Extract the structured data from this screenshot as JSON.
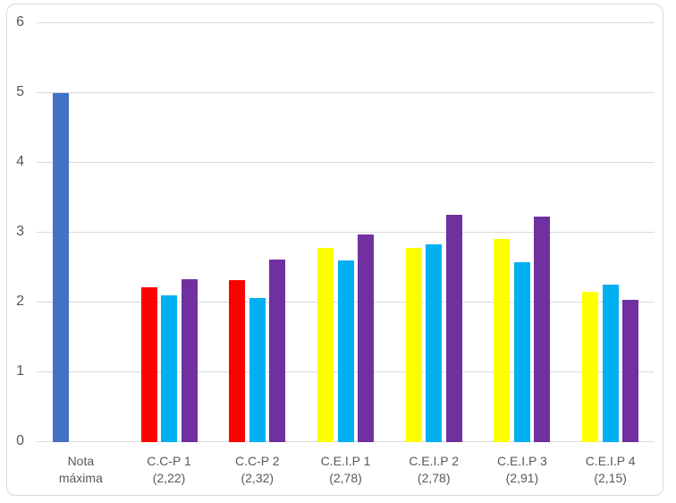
{
  "chart_data": {
    "type": "bar",
    "title": "",
    "xlabel": "",
    "ylabel": "",
    "ylim": [
      0,
      6
    ],
    "ytick_labels": [
      "0",
      "1",
      "2",
      "3",
      "4",
      "5",
      "6"
    ],
    "grid": "horizontal",
    "legend_position": "none",
    "gridline_color": "#d9d9d9",
    "axis_label_color": "#595959",
    "frame_border_color": "#d9d9d9",
    "colors": {
      "blue": "#4472c4",
      "red": "#ff0000",
      "cyan": "#00b0f0",
      "purple": "#7030a0",
      "yellow": "#ffff00"
    },
    "categories": [
      {
        "label_line1": "Nota",
        "label_line2": "máxima",
        "bars": [
          {
            "slot": 0,
            "color": "blue",
            "value": 5.0
          }
        ]
      },
      {
        "label_line1": "C.C-P 1",
        "label_line2": "(2,22)",
        "bars": [
          {
            "slot": 0,
            "color": "red",
            "value": 2.22
          },
          {
            "slot": 1,
            "color": "cyan",
            "value": 2.1
          },
          {
            "slot": 2,
            "color": "purple",
            "value": 2.33
          }
        ]
      },
      {
        "label_line1": "C.C-P 2",
        "label_line2": "(2,32)",
        "bars": [
          {
            "slot": 0,
            "color": "red",
            "value": 2.32
          },
          {
            "slot": 1,
            "color": "cyan",
            "value": 2.07
          },
          {
            "slot": 2,
            "color": "purple",
            "value": 2.61
          }
        ]
      },
      {
        "label_line1": "C.E.I.P 1",
        "label_line2": "(2,78)",
        "bars": [
          {
            "slot": 0,
            "color": "yellow",
            "value": 2.78
          },
          {
            "slot": 1,
            "color": "cyan",
            "value": 2.6
          },
          {
            "slot": 2,
            "color": "purple",
            "value": 2.97
          }
        ]
      },
      {
        "label_line1": "C.E.I.P 2",
        "label_line2": "(2,78)",
        "bars": [
          {
            "slot": 0,
            "color": "yellow",
            "value": 2.78
          },
          {
            "slot": 1,
            "color": "cyan",
            "value": 2.83
          },
          {
            "slot": 2,
            "color": "purple",
            "value": 3.25
          }
        ]
      },
      {
        "label_line1": "C.E.I.P 3",
        "label_line2": "(2,91)",
        "bars": [
          {
            "slot": 0,
            "color": "yellow",
            "value": 2.91
          },
          {
            "slot": 1,
            "color": "cyan",
            "value": 2.58
          },
          {
            "slot": 2,
            "color": "purple",
            "value": 3.23
          }
        ]
      },
      {
        "label_line1": "C.E.I.P 4",
        "label_line2": "(2,15)",
        "bars": [
          {
            "slot": 0,
            "color": "yellow",
            "value": 2.15
          },
          {
            "slot": 1,
            "color": "cyan",
            "value": 2.26
          },
          {
            "slot": 2,
            "color": "purple",
            "value": 2.04
          }
        ]
      }
    ]
  }
}
